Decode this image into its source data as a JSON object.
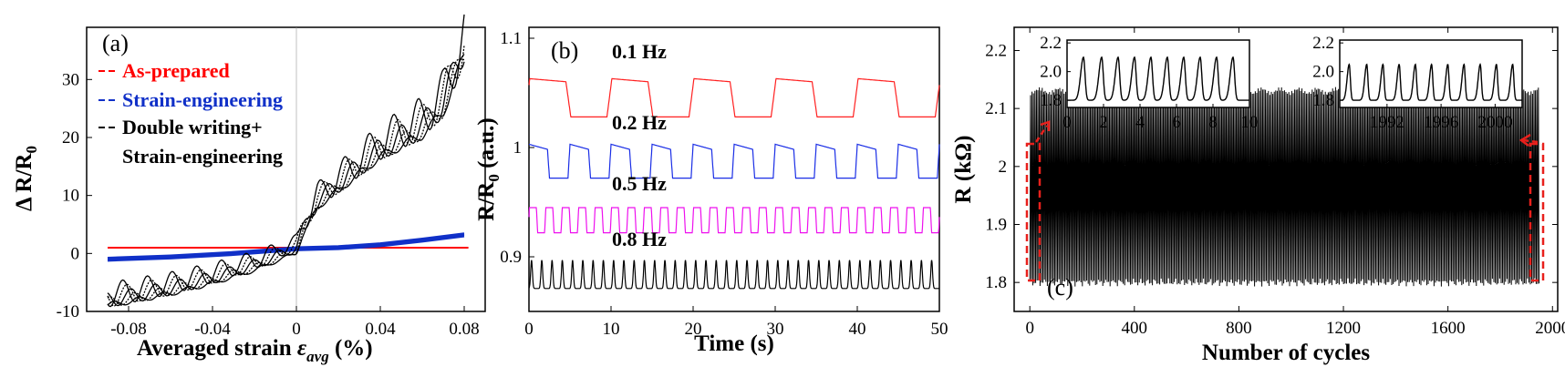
{
  "colors": {
    "as_prepared": "#ff0000",
    "strain_engineering": "#1030c8",
    "double_writing": "#000000",
    "f01": "#ff2020",
    "f02": "#1a2ee6",
    "f05": "#ee10ee",
    "f08": "#000000",
    "callout": "#e8201c"
  },
  "chart_data": [
    {
      "type": "line",
      "panel_label": "(a)",
      "xlabel_main": "Averaged strain ",
      "xlabel_symbol": "ε",
      "xlabel_sub": "avg",
      "xlabel_unit": " (%)",
      "ylabel_main": "Δ R/R",
      "ylabel_sub": "0",
      "xlim": [
        -0.1,
        0.09
      ],
      "ylim": [
        -10,
        39
      ],
      "xticks": [
        {
          "v": -0.08,
          "label": "-0.08"
        },
        {
          "v": -0.04,
          "label": "-0.04"
        },
        {
          "v": 0,
          "label": "0"
        },
        {
          "v": 0.04,
          "label": "0.04"
        },
        {
          "v": 0.08,
          "label": "0.08"
        }
      ],
      "yticks": [
        {
          "v": -10,
          "label": "-10"
        },
        {
          "v": 0,
          "label": "0"
        },
        {
          "v": 10,
          "label": "10"
        },
        {
          "v": 20,
          "label": "20"
        },
        {
          "v": 30,
          "label": "30"
        }
      ],
      "legend_position": "top-left",
      "series": [
        {
          "name": "As-prepared",
          "color_key": "as_prepared",
          "x": [
            -0.09,
            -0.05,
            0,
            0.04,
            0.082
          ],
          "y": [
            1,
            1,
            1,
            1,
            1
          ]
        },
        {
          "name": "Strain-engineering",
          "color_key": "strain_engineering",
          "x": [
            -0.09,
            -0.06,
            -0.03,
            0,
            0.02,
            0.04,
            0.06,
            0.08
          ],
          "y": [
            -1,
            -0.6,
            0,
            0.8,
            1,
            1.5,
            2.3,
            3.2
          ]
        },
        {
          "name_line1": "Double writing+",
          "name_line2": "Strain-engineering",
          "color_key": "double_writing",
          "x": [
            -0.09,
            -0.08,
            -0.06,
            -0.04,
            -0.02,
            -0.01,
            0,
            0.003,
            0.01,
            0.02,
            0.03,
            0.04,
            0.05,
            0.06,
            0.07,
            0.08
          ],
          "y": [
            -8,
            -7.4,
            -6,
            -4.2,
            -2,
            -0.5,
            1,
            4,
            9,
            12,
            15,
            18,
            20,
            22,
            26,
            36
          ]
        }
      ]
    },
    {
      "type": "line",
      "panel_label": "(b)",
      "xlabel": "Time (s)",
      "ylabel_main": "R/R",
      "ylabel_sub": "0",
      "ylabel_unit": " (a.u.)",
      "xlim": [
        0,
        50
      ],
      "ylim": [
        0.85,
        1.11
      ],
      "xticks": [
        {
          "v": 0,
          "label": "0"
        },
        {
          "v": 10,
          "label": "10"
        },
        {
          "v": 20,
          "label": "20"
        },
        {
          "v": 30,
          "label": "30"
        },
        {
          "v": 40,
          "label": "40"
        },
        {
          "v": 50,
          "label": "50"
        }
      ],
      "yticks": [
        {
          "v": 0.9,
          "label": "0.9"
        },
        {
          "v": 1.0,
          "label": "1"
        },
        {
          "v": 1.1,
          "label": "1.1"
        }
      ],
      "series": [
        {
          "name": "0.1 Hz",
          "color_key": "f01",
          "freq": 0.1,
          "low": 1.028,
          "high": 1.063
        },
        {
          "name": "0.2 Hz",
          "color_key": "f02",
          "freq": 0.2,
          "low": 0.972,
          "high": 1.003
        },
        {
          "name": "0.5 Hz",
          "color_key": "f05",
          "freq": 0.5,
          "low": 0.922,
          "high": 0.945
        },
        {
          "name": "0.8 Hz",
          "color_key": "f08",
          "freq": 0.8,
          "low": 0.871,
          "high": 0.897
        }
      ]
    },
    {
      "type": "line",
      "panel_label": "(c)",
      "xlabel": "Number  of cycles",
      "ylabel": "R (kΩ)",
      "xlim": [
        -60,
        2020
      ],
      "ylim": [
        1.75,
        2.24
      ],
      "xticks": [
        {
          "v": 0,
          "label": "0"
        },
        {
          "v": 400,
          "label": "400"
        },
        {
          "v": 800,
          "label": "800"
        },
        {
          "v": 1200,
          "label": "1200"
        },
        {
          "v": 1600,
          "label": "1600"
        },
        {
          "v": 2000,
          "label": "2000"
        }
      ],
      "yticks": [
        {
          "v": 1.8,
          "label": "1.8"
        },
        {
          "v": 1.9,
          "label": "1.9"
        },
        {
          "v": 2.0,
          "label": "2"
        },
        {
          "v": 2.1,
          "label": "2.1"
        },
        {
          "v": 2.2,
          "label": "2.2"
        }
      ],
      "series": [
        {
          "name": "",
          "color_key": "f08",
          "x_range": [
            0,
            2000
          ],
          "low": 1.8,
          "high": 2.13
        }
      ],
      "insets": [
        {
          "xlim": [
            0,
            10
          ],
          "ylim": [
            1.75,
            2.22
          ],
          "xticks": [
            {
              "v": 0,
              "label": "0"
            },
            {
              "v": 2,
              "label": "2"
            },
            {
              "v": 4,
              "label": "4"
            },
            {
              "v": 6,
              "label": "6"
            },
            {
              "v": 8,
              "label": "8"
            },
            {
              "v": 10,
              "label": "10"
            }
          ],
          "yticks": [
            {
              "v": 1.8,
              "label": "1.8"
            },
            {
              "v": 2.0,
              "label": "2.0"
            },
            {
              "v": 2.2,
              "label": "2.2"
            }
          ],
          "peaks": [
            0.9,
            1.9,
            2.8,
            3.7,
            4.6,
            5.5,
            6.4,
            7.3,
            8.2,
            9.1
          ],
          "low": 1.8,
          "high": 2.1
        },
        {
          "xlim": [
            1988.5,
            2002
          ],
          "ylim": [
            1.75,
            2.22
          ],
          "xticks": [
            {
              "v": 1992,
              "label": "1992"
            },
            {
              "v": 1996,
              "label": "1996"
            },
            {
              "v": 2000,
              "label": "2000"
            }
          ],
          "yticks": [
            {
              "v": 1.8,
              "label": "1.8"
            },
            {
              "v": 2.0,
              "label": "2.0"
            },
            {
              "v": 2.2,
              "label": "2.2"
            }
          ],
          "peaks": [
            1989.2,
            1990.5,
            1991.7,
            1992.9,
            1994.1,
            1995.3,
            1996.5,
            1997.7,
            1998.9,
            2000.1,
            2001.3
          ],
          "low": 1.8,
          "high": 2.05
        }
      ]
    }
  ]
}
